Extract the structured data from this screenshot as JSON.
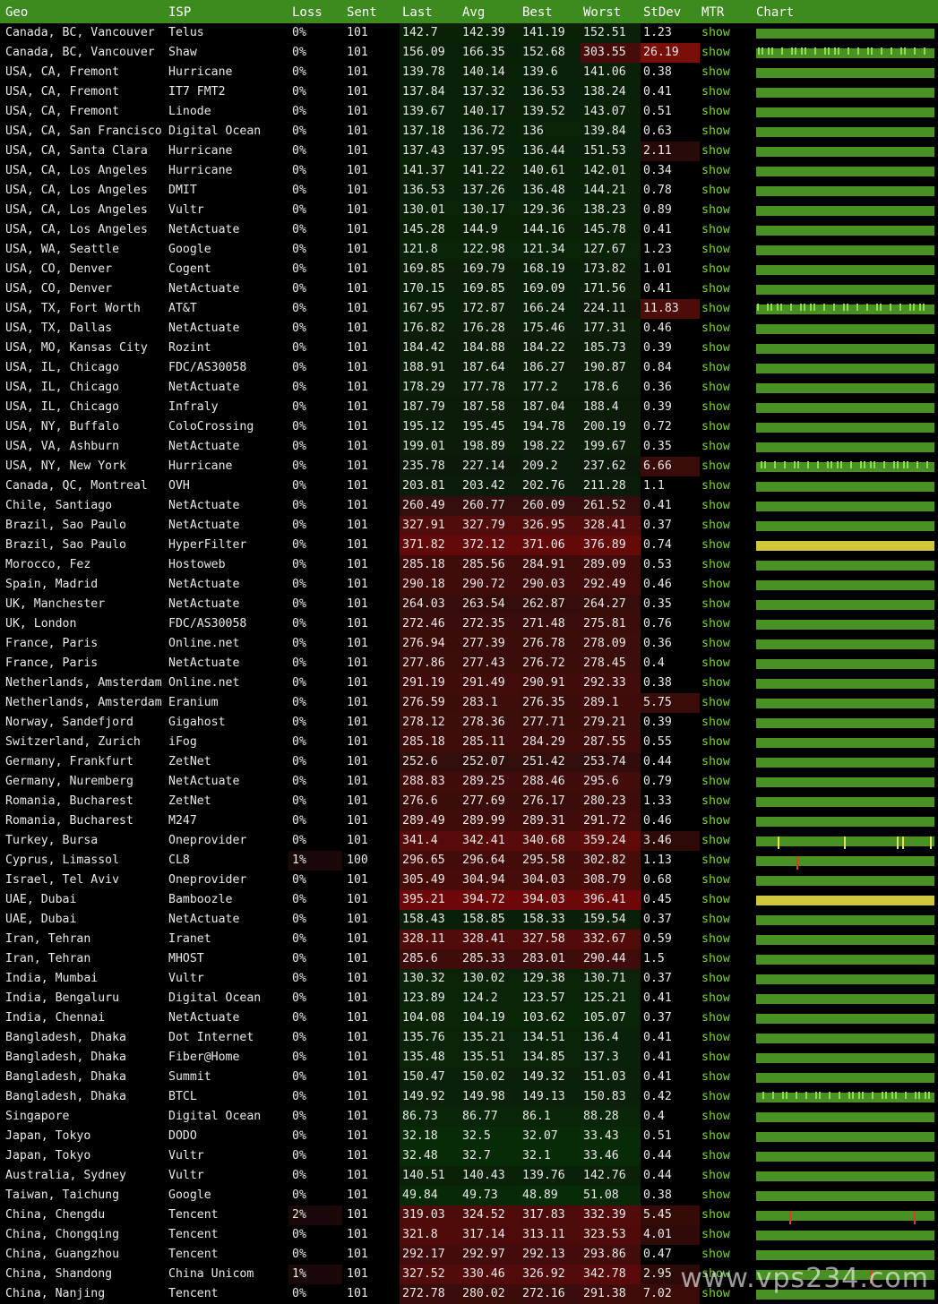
{
  "headers": [
    "Geo",
    "ISP",
    "Loss",
    "Sent",
    "Last",
    "Avg",
    "Best",
    "Worst",
    "StDev",
    "MTR",
    "Chart"
  ],
  "show_label": "show",
  "watermark": "www.vps234.com",
  "colors": {
    "header_bg": "#3d8a1f",
    "show_link": "#7ed33b",
    "chart_green": "#4a9124",
    "chart_yellow": "#cfc93a",
    "spike_red": "#e0392a"
  },
  "rows": [
    {
      "geo": "Canada, BC, Vancouver",
      "isp": "Telus",
      "loss": "0%",
      "sent": "101",
      "last": "142.7",
      "avg": "142.39",
      "best": "141.19",
      "worst": "152.51",
      "stdev": "1.23",
      "chart": "green"
    },
    {
      "geo": "Canada, BC, Vancouver",
      "isp": "Shaw",
      "loss": "0%",
      "sent": "101",
      "last": "156.09",
      "avg": "166.35",
      "best": "152.68",
      "worst": "303.55",
      "stdev": "26.19",
      "chart": "green",
      "jitter": true
    },
    {
      "geo": "USA, CA, Fremont",
      "isp": "Hurricane",
      "loss": "0%",
      "sent": "101",
      "last": "139.78",
      "avg": "140.14",
      "best": "139.6",
      "worst": "141.06",
      "stdev": "0.38",
      "chart": "green"
    },
    {
      "geo": "USA, CA, Fremont",
      "isp": "IT7 FMT2",
      "loss": "0%",
      "sent": "101",
      "last": "137.84",
      "avg": "137.32",
      "best": "136.53",
      "worst": "138.24",
      "stdev": "0.41",
      "chart": "green"
    },
    {
      "geo": "USA, CA, Fremont",
      "isp": "Linode",
      "loss": "0%",
      "sent": "101",
      "last": "139.67",
      "avg": "140.17",
      "best": "139.52",
      "worst": "143.07",
      "stdev": "0.51",
      "chart": "green"
    },
    {
      "geo": "USA, CA, San Francisco",
      "isp": "Digital Ocean",
      "loss": "0%",
      "sent": "101",
      "last": "137.18",
      "avg": "136.72",
      "best": "136",
      "worst": "139.84",
      "stdev": "0.63",
      "chart": "green"
    },
    {
      "geo": "USA, CA, Santa Clara",
      "isp": "Hurricane",
      "loss": "0%",
      "sent": "101",
      "last": "137.43",
      "avg": "137.95",
      "best": "136.44",
      "worst": "151.53",
      "stdev": "2.11",
      "chart": "green"
    },
    {
      "geo": "USA, CA, Los Angeles",
      "isp": "Hurricane",
      "loss": "0%",
      "sent": "101",
      "last": "141.37",
      "avg": "141.22",
      "best": "140.61",
      "worst": "142.01",
      "stdev": "0.34",
      "chart": "green"
    },
    {
      "geo": "USA, CA, Los Angeles",
      "isp": "DMIT",
      "loss": "0%",
      "sent": "101",
      "last": "136.53",
      "avg": "137.26",
      "best": "136.48",
      "worst": "144.21",
      "stdev": "0.78",
      "chart": "green"
    },
    {
      "geo": "USA, CA, Los Angeles",
      "isp": "Vultr",
      "loss": "0%",
      "sent": "101",
      "last": "130.01",
      "avg": "130.17",
      "best": "129.36",
      "worst": "138.23",
      "stdev": "0.89",
      "chart": "green"
    },
    {
      "geo": "USA, CA, Los Angeles",
      "isp": "NetActuate",
      "loss": "0%",
      "sent": "101",
      "last": "145.28",
      "avg": "144.9",
      "best": "144.16",
      "worst": "145.78",
      "stdev": "0.41",
      "chart": "green"
    },
    {
      "geo": "USA, WA, Seattle",
      "isp": "Google",
      "loss": "0%",
      "sent": "101",
      "last": "121.8",
      "avg": "122.98",
      "best": "121.34",
      "worst": "127.67",
      "stdev": "1.23",
      "chart": "green"
    },
    {
      "geo": "USA, CO, Denver",
      "isp": "Cogent",
      "loss": "0%",
      "sent": "101",
      "last": "169.85",
      "avg": "169.79",
      "best": "168.19",
      "worst": "173.82",
      "stdev": "1.01",
      "chart": "green"
    },
    {
      "geo": "USA, CO, Denver",
      "isp": "NetActuate",
      "loss": "0%",
      "sent": "101",
      "last": "170.15",
      "avg": "169.85",
      "best": "169.09",
      "worst": "171.56",
      "stdev": "0.41",
      "chart": "green"
    },
    {
      "geo": "USA, TX, Fort Worth",
      "isp": "AT&T",
      "loss": "0%",
      "sent": "101",
      "last": "167.95",
      "avg": "172.87",
      "best": "166.24",
      "worst": "224.11",
      "stdev": "11.83",
      "chart": "green",
      "jitter": true
    },
    {
      "geo": "USA, TX, Dallas",
      "isp": "NetActuate",
      "loss": "0%",
      "sent": "101",
      "last": "176.82",
      "avg": "176.28",
      "best": "175.46",
      "worst": "177.31",
      "stdev": "0.46",
      "chart": "green"
    },
    {
      "geo": "USA, MO, Kansas City",
      "isp": "Rozint",
      "loss": "0%",
      "sent": "101",
      "last": "184.42",
      "avg": "184.88",
      "best": "184.22",
      "worst": "185.73",
      "stdev": "0.39",
      "chart": "green"
    },
    {
      "geo": "USA, IL, Chicago",
      "isp": "FDC/AS30058",
      "loss": "0%",
      "sent": "101",
      "last": "188.91",
      "avg": "187.64",
      "best": "186.27",
      "worst": "190.87",
      "stdev": "0.84",
      "chart": "green"
    },
    {
      "geo": "USA, IL, Chicago",
      "isp": "NetActuate",
      "loss": "0%",
      "sent": "101",
      "last": "178.29",
      "avg": "177.78",
      "best": "177.2",
      "worst": "178.6",
      "stdev": "0.36",
      "chart": "green"
    },
    {
      "geo": "USA, IL, Chicago",
      "isp": "Infraly",
      "loss": "0%",
      "sent": "101",
      "last": "187.79",
      "avg": "187.58",
      "best": "187.04",
      "worst": "188.4",
      "stdev": "0.39",
      "chart": "green"
    },
    {
      "geo": "USA, NY, Buffalo",
      "isp": "ColoCrossing",
      "loss": "0%",
      "sent": "101",
      "last": "195.12",
      "avg": "195.45",
      "best": "194.78",
      "worst": "200.19",
      "stdev": "0.72",
      "chart": "green"
    },
    {
      "geo": "USA, VA, Ashburn",
      "isp": "NetActuate",
      "loss": "0%",
      "sent": "101",
      "last": "199.01",
      "avg": "198.89",
      "best": "198.22",
      "worst": "199.67",
      "stdev": "0.35",
      "chart": "green"
    },
    {
      "geo": "USA, NY, New York",
      "isp": "Hurricane",
      "loss": "0%",
      "sent": "101",
      "last": "235.78",
      "avg": "227.14",
      "best": "209.2",
      "worst": "237.62",
      "stdev": "6.66",
      "chart": "green",
      "jitter": true
    },
    {
      "geo": "Canada, QC, Montreal",
      "isp": "OVH",
      "loss": "0%",
      "sent": "101",
      "last": "203.81",
      "avg": "203.42",
      "best": "202.76",
      "worst": "211.28",
      "stdev": "1.1",
      "chart": "green"
    },
    {
      "geo": "Chile, Santiago",
      "isp": "NetActuate",
      "loss": "0%",
      "sent": "101",
      "last": "260.49",
      "avg": "260.77",
      "best": "260.09",
      "worst": "261.52",
      "stdev": "0.41",
      "chart": "green"
    },
    {
      "geo": "Brazil, Sao Paulo",
      "isp": "NetActuate",
      "loss": "0%",
      "sent": "101",
      "last": "327.91",
      "avg": "327.79",
      "best": "326.95",
      "worst": "328.41",
      "stdev": "0.37",
      "chart": "green"
    },
    {
      "geo": "Brazil, Sao Paulo",
      "isp": "HyperFilter",
      "loss": "0%",
      "sent": "101",
      "last": "371.82",
      "avg": "372.12",
      "best": "371.06",
      "worst": "376.89",
      "stdev": "0.74",
      "chart": "yellow"
    },
    {
      "geo": "Morocco, Fez",
      "isp": "Hostoweb",
      "loss": "0%",
      "sent": "101",
      "last": "285.18",
      "avg": "285.56",
      "best": "284.91",
      "worst": "289.09",
      "stdev": "0.53",
      "chart": "green"
    },
    {
      "geo": "Spain, Madrid",
      "isp": "NetActuate",
      "loss": "0%",
      "sent": "101",
      "last": "290.18",
      "avg": "290.72",
      "best": "290.03",
      "worst": "292.49",
      "stdev": "0.46",
      "chart": "green"
    },
    {
      "geo": "UK, Manchester",
      "isp": "NetActuate",
      "loss": "0%",
      "sent": "101",
      "last": "264.03",
      "avg": "263.54",
      "best": "262.87",
      "worst": "264.27",
      "stdev": "0.35",
      "chart": "green"
    },
    {
      "geo": "UK, London",
      "isp": "FDC/AS30058",
      "loss": "0%",
      "sent": "101",
      "last": "272.46",
      "avg": "272.35",
      "best": "271.48",
      "worst": "275.81",
      "stdev": "0.76",
      "chart": "green"
    },
    {
      "geo": "France, Paris",
      "isp": "Online.net",
      "loss": "0%",
      "sent": "101",
      "last": "276.94",
      "avg": "277.39",
      "best": "276.78",
      "worst": "278.09",
      "stdev": "0.36",
      "chart": "green"
    },
    {
      "geo": "France, Paris",
      "isp": "NetActuate",
      "loss": "0%",
      "sent": "101",
      "last": "277.86",
      "avg": "277.43",
      "best": "276.72",
      "worst": "278.45",
      "stdev": "0.4",
      "chart": "green"
    },
    {
      "geo": "Netherlands, Amsterdam",
      "isp": "Online.net",
      "loss": "0%",
      "sent": "101",
      "last": "291.19",
      "avg": "291.49",
      "best": "290.91",
      "worst": "292.33",
      "stdev": "0.38",
      "chart": "green"
    },
    {
      "geo": "Netherlands, Amsterdam",
      "isp": "Eranium",
      "loss": "0%",
      "sent": "101",
      "last": "276.59",
      "avg": "283.1",
      "best": "276.35",
      "worst": "289.1",
      "stdev": "5.75",
      "chart": "green"
    },
    {
      "geo": "Norway, Sandefjord",
      "isp": "Gigahost",
      "loss": "0%",
      "sent": "101",
      "last": "278.12",
      "avg": "278.36",
      "best": "277.71",
      "worst": "279.21",
      "stdev": "0.39",
      "chart": "green"
    },
    {
      "geo": "Switzerland, Zurich",
      "isp": "iFog",
      "loss": "0%",
      "sent": "101",
      "last": "285.18",
      "avg": "285.11",
      "best": "284.29",
      "worst": "287.55",
      "stdev": "0.55",
      "chart": "green"
    },
    {
      "geo": "Germany, Frankfurt",
      "isp": "ZetNet",
      "loss": "0%",
      "sent": "101",
      "last": "252.6",
      "avg": "252.07",
      "best": "251.42",
      "worst": "253.74",
      "stdev": "0.44",
      "chart": "green"
    },
    {
      "geo": "Germany, Nuremberg",
      "isp": "NetActuate",
      "loss": "0%",
      "sent": "101",
      "last": "288.83",
      "avg": "289.25",
      "best": "288.46",
      "worst": "295.6",
      "stdev": "0.79",
      "chart": "green"
    },
    {
      "geo": "Romania, Bucharest",
      "isp": "ZetNet",
      "loss": "0%",
      "sent": "101",
      "last": "276.6",
      "avg": "277.69",
      "best": "276.17",
      "worst": "280.23",
      "stdev": "1.33",
      "chart": "green"
    },
    {
      "geo": "Romania, Bucharest",
      "isp": "M247",
      "loss": "0%",
      "sent": "101",
      "last": "289.49",
      "avg": "289.99",
      "best": "289.31",
      "worst": "291.72",
      "stdev": "0.46",
      "chart": "green"
    },
    {
      "geo": "Turkey, Bursa",
      "isp": "Oneprovider",
      "loss": "0%",
      "sent": "101",
      "last": "341.4",
      "avg": "342.41",
      "best": "340.68",
      "worst": "359.24",
      "stdev": "3.46",
      "chart": "green",
      "yticks": [
        0.12,
        0.5,
        0.8,
        0.83,
        0.99
      ]
    },
    {
      "geo": "Cyprus, Limassol",
      "isp": "CL8",
      "loss": "1%",
      "sent": "100",
      "last": "296.65",
      "avg": "296.64",
      "best": "295.58",
      "worst": "302.82",
      "stdev": "1.13",
      "chart": "green",
      "rticks": [
        0.23
      ]
    },
    {
      "geo": "Israel, Tel Aviv",
      "isp": "Oneprovider",
      "loss": "0%",
      "sent": "101",
      "last": "305.49",
      "avg": "304.94",
      "best": "304.03",
      "worst": "308.79",
      "stdev": "0.68",
      "chart": "green"
    },
    {
      "geo": "UAE, Dubai",
      "isp": "Bamboozle",
      "loss": "0%",
      "sent": "101",
      "last": "395.21",
      "avg": "394.72",
      "best": "394.03",
      "worst": "396.41",
      "stdev": "0.45",
      "chart": "yellow"
    },
    {
      "geo": "UAE, Dubai",
      "isp": "NetActuate",
      "loss": "0%",
      "sent": "101",
      "last": "158.43",
      "avg": "158.85",
      "best": "158.33",
      "worst": "159.54",
      "stdev": "0.37",
      "chart": "green"
    },
    {
      "geo": "Iran, Tehran",
      "isp": "Iranet",
      "loss": "0%",
      "sent": "101",
      "last": "328.11",
      "avg": "328.41",
      "best": "327.58",
      "worst": "332.67",
      "stdev": "0.59",
      "chart": "green"
    },
    {
      "geo": "Iran, Tehran",
      "isp": "MHOST",
      "loss": "0%",
      "sent": "101",
      "last": "285.6",
      "avg": "285.33",
      "best": "283.01",
      "worst": "290.44",
      "stdev": "1.5",
      "chart": "green"
    },
    {
      "geo": "India, Mumbai",
      "isp": "Vultr",
      "loss": "0%",
      "sent": "101",
      "last": "130.32",
      "avg": "130.02",
      "best": "129.38",
      "worst": "130.71",
      "stdev": "0.37",
      "chart": "green"
    },
    {
      "geo": "India, Bengaluru",
      "isp": "Digital Ocean",
      "loss": "0%",
      "sent": "101",
      "last": "123.89",
      "avg": "124.2",
      "best": "123.57",
      "worst": "125.21",
      "stdev": "0.41",
      "chart": "green"
    },
    {
      "geo": "India, Chennai",
      "isp": "NetActuate",
      "loss": "0%",
      "sent": "101",
      "last": "104.08",
      "avg": "104.19",
      "best": "103.62",
      "worst": "105.07",
      "stdev": "0.37",
      "chart": "green"
    },
    {
      "geo": "Bangladesh, Dhaka",
      "isp": "Dot Internet",
      "loss": "0%",
      "sent": "101",
      "last": "135.76",
      "avg": "135.21",
      "best": "134.51",
      "worst": "136.4",
      "stdev": "0.41",
      "chart": "green"
    },
    {
      "geo": "Bangladesh, Dhaka",
      "isp": "Fiber@Home",
      "loss": "0%",
      "sent": "101",
      "last": "135.48",
      "avg": "135.51",
      "best": "134.85",
      "worst": "137.3",
      "stdev": "0.41",
      "chart": "green"
    },
    {
      "geo": "Bangladesh, Dhaka",
      "isp": "Summit",
      "loss": "0%",
      "sent": "101",
      "last": "150.47",
      "avg": "150.02",
      "best": "149.32",
      "worst": "151.03",
      "stdev": "0.41",
      "chart": "green"
    },
    {
      "geo": "Bangladesh, Dhaka",
      "isp": "BTCL",
      "loss": "0%",
      "sent": "101",
      "last": "149.92",
      "avg": "149.98",
      "best": "149.13",
      "worst": "150.83",
      "stdev": "0.42",
      "chart": "green",
      "jitter": true
    },
    {
      "geo": "Singapore",
      "isp": "Digital Ocean",
      "loss": "0%",
      "sent": "101",
      "last": "86.73",
      "avg": "86.77",
      "best": "86.1",
      "worst": "88.28",
      "stdev": "0.4",
      "chart": "green"
    },
    {
      "geo": "Japan, Tokyo",
      "isp": "DODO",
      "loss": "0%",
      "sent": "101",
      "last": "32.18",
      "avg": "32.5",
      "best": "32.07",
      "worst": "33.43",
      "stdev": "0.51",
      "chart": "green"
    },
    {
      "geo": "Japan, Tokyo",
      "isp": "Vultr",
      "loss": "0%",
      "sent": "101",
      "last": "32.48",
      "avg": "32.7",
      "best": "32.1",
      "worst": "33.46",
      "stdev": "0.44",
      "chart": "green"
    },
    {
      "geo": "Australia, Sydney",
      "isp": "Vultr",
      "loss": "0%",
      "sent": "101",
      "last": "140.51",
      "avg": "140.43",
      "best": "139.76",
      "worst": "142.76",
      "stdev": "0.44",
      "chart": "green"
    },
    {
      "geo": "Taiwan, Taichung",
      "isp": "Google",
      "loss": "0%",
      "sent": "101",
      "last": "49.84",
      "avg": "49.73",
      "best": "48.89",
      "worst": "51.08",
      "stdev": "0.38",
      "chart": "green"
    },
    {
      "geo": "China, Chengdu",
      "isp": "Tencent",
      "loss": "2%",
      "sent": "101",
      "last": "319.03",
      "avg": "324.52",
      "best": "317.83",
      "worst": "332.39",
      "stdev": "5.45",
      "chart": "green",
      "rticks": [
        0.19,
        0.9
      ]
    },
    {
      "geo": "China, Chongqing",
      "isp": "Tencent",
      "loss": "0%",
      "sent": "101",
      "last": "321.8",
      "avg": "317.14",
      "best": "313.11",
      "worst": "323.53",
      "stdev": "4.01",
      "chart": "green"
    },
    {
      "geo": "China, Guangzhou",
      "isp": "Tencent",
      "loss": "0%",
      "sent": "101",
      "last": "292.17",
      "avg": "292.97",
      "best": "292.13",
      "worst": "293.86",
      "stdev": "0.47",
      "chart": "green"
    },
    {
      "geo": "China, Shandong",
      "isp": "China Unicom",
      "loss": "1%",
      "sent": "101",
      "last": "327.52",
      "avg": "330.46",
      "best": "326.92",
      "worst": "342.78",
      "stdev": "2.95",
      "chart": "green",
      "rticks": [
        0.65
      ]
    },
    {
      "geo": "China, Nanjing",
      "isp": "Tencent",
      "loss": "0%",
      "sent": "101",
      "last": "272.78",
      "avg": "280.02",
      "best": "272.16",
      "worst": "291.38",
      "stdev": "7.02",
      "chart": "green"
    }
  ]
}
